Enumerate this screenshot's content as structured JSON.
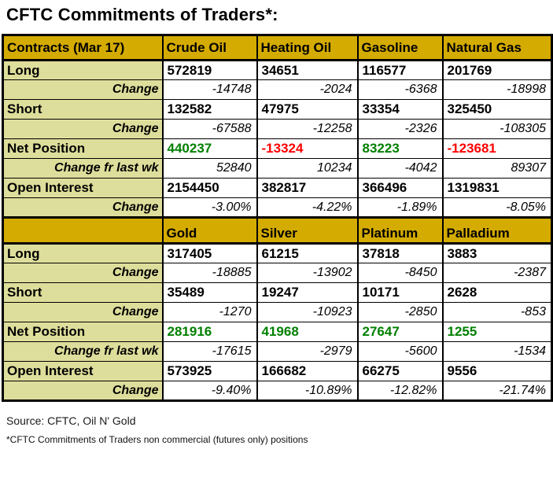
{
  "title": "CFTC Commitments of Traders*:",
  "source": "Source: CFTC, Oil N' Gold",
  "footnote": "*CFTC Commitments of Traders non commercial (futures only) positions",
  "colors": {
    "header_bg": "#d4ab00",
    "label_bg": "#dede9c",
    "positive": "#008000",
    "negative": "#ff0000",
    "border": "#000000"
  },
  "chart_data": {
    "type": "table",
    "title": "CFTC Commitments of Traders*:",
    "sections": [
      {
        "columns": [
          "Contracts (Mar 17)",
          "Crude Oil",
          "Heating Oil",
          "Gasoline",
          "Natural Gas"
        ],
        "rows": [
          {
            "label": "Long",
            "type": "main",
            "values": [
              572819,
              34651,
              116577,
              201769
            ]
          },
          {
            "label": "Change",
            "type": "change",
            "values": [
              -14748,
              -2024,
              -6368,
              -18998
            ]
          },
          {
            "label": "Short",
            "type": "main",
            "values": [
              132582,
              47975,
              33354,
              325450
            ]
          },
          {
            "label": "Change",
            "type": "change",
            "values": [
              -67588,
              -12258,
              -2326,
              -108305
            ]
          },
          {
            "label": "Net Position",
            "type": "net",
            "values": [
              440237,
              -13324,
              83223,
              -123681
            ]
          },
          {
            "label": "Change fr last wk",
            "type": "change",
            "values": [
              52840,
              10234,
              -4042,
              89307
            ]
          },
          {
            "label": "Open Interest",
            "type": "main",
            "values": [
              2154450,
              382817,
              366496,
              1319831
            ]
          },
          {
            "label": "Change",
            "type": "change",
            "values": [
              "-3.00%",
              "-4.22%",
              "-1.89%",
              "-8.05%"
            ]
          }
        ]
      },
      {
        "columns": [
          "",
          "Gold",
          "Silver",
          "Platinum",
          "Palladium"
        ],
        "rows": [
          {
            "label": "Long",
            "type": "main",
            "values": [
              317405,
              61215,
              37818,
              3883
            ]
          },
          {
            "label": "Change",
            "type": "change",
            "values": [
              -18885,
              -13902,
              -8450,
              -2387
            ]
          },
          {
            "label": "Short",
            "type": "main",
            "values": [
              35489,
              19247,
              10171,
              2628
            ]
          },
          {
            "label": "Change",
            "type": "change",
            "values": [
              -1270,
              -10923,
              -2850,
              -853
            ]
          },
          {
            "label": "Net Position",
            "type": "net",
            "values": [
              281916,
              41968,
              27647,
              1255
            ]
          },
          {
            "label": "Change fr last wk",
            "type": "change",
            "values": [
              -17615,
              -2979,
              -5600,
              -1534
            ]
          },
          {
            "label": "Open Interest",
            "type": "main",
            "values": [
              573925,
              166682,
              66275,
              9556
            ]
          },
          {
            "label": "Change",
            "type": "change",
            "values": [
              "-9.40%",
              "-10.89%",
              "-12.82%",
              "-21.74%"
            ]
          }
        ]
      }
    ]
  }
}
